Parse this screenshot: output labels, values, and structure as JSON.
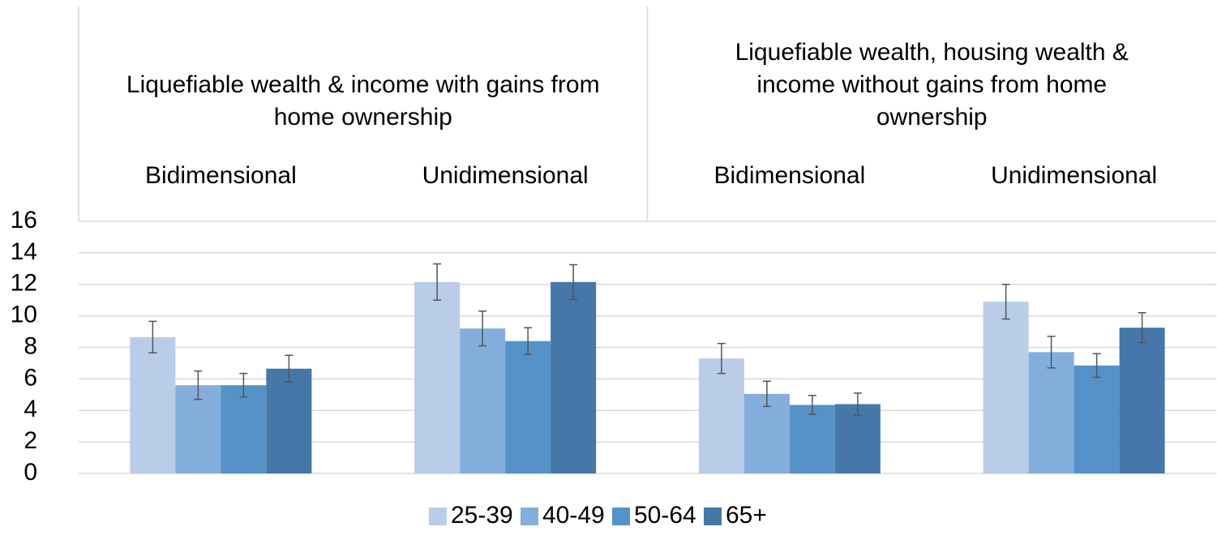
{
  "chart_data": {
    "type": "bar",
    "category_groups": [
      {
        "name": "Liquefiable wealth & income with gains from home ownership",
        "categories": [
          "Bidimensional",
          "Unidimensional"
        ]
      },
      {
        "name": "Liquefiable wealth, housing wealth & income without gains from home ownership",
        "categories": [
          "Bidimensional",
          "Unidimensional"
        ]
      }
    ],
    "series": [
      {
        "name": "25-39",
        "color": "#b9cde9",
        "values": [
          8.65,
          12.15,
          7.3,
          10.9
        ],
        "errors": [
          1.0,
          1.15,
          0.95,
          1.1
        ]
      },
      {
        "name": "40-49",
        "color": "#84aedc",
        "values": [
          5.6,
          9.2,
          5.05,
          7.7
        ],
        "errors": [
          0.9,
          1.1,
          0.8,
          1.0
        ]
      },
      {
        "name": "50-64",
        "color": "#5592c8",
        "values": [
          5.6,
          8.4,
          4.35,
          6.85
        ],
        "errors": [
          0.75,
          0.85,
          0.6,
          0.75
        ]
      },
      {
        "name": "65+",
        "color": "#4577a8",
        "values": [
          6.65,
          12.15,
          4.4,
          9.25
        ],
        "errors": [
          0.85,
          1.1,
          0.7,
          0.95
        ]
      }
    ],
    "ylim": [
      0,
      16
    ],
    "yticks": [
      0,
      2,
      4,
      6,
      8,
      10,
      12,
      14,
      16
    ],
    "grid": true,
    "legend": "bottom"
  }
}
